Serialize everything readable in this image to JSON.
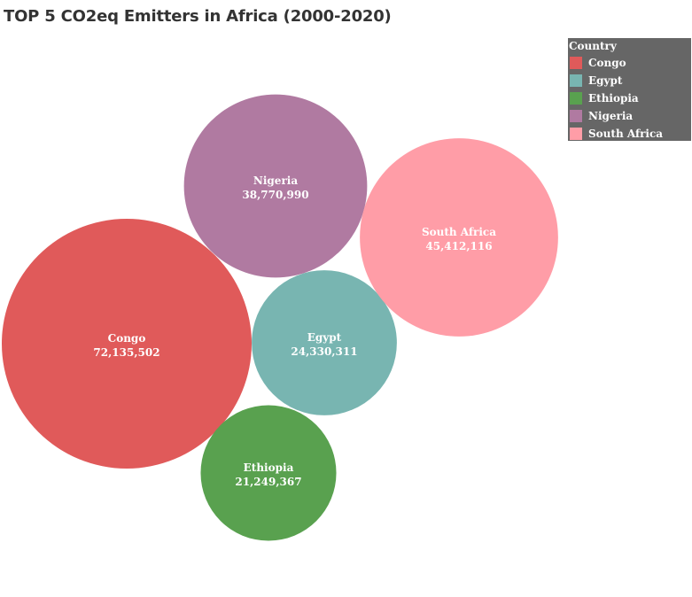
{
  "title": "TOP 5 CO2eq Emitters in Africa (2000-2020)",
  "legend": {
    "title": "Country",
    "items": [
      {
        "label": "Congo",
        "color": "#e05a5a"
      },
      {
        "label": "Egypt",
        "color": "#78b5b1"
      },
      {
        "label": "Ethiopia",
        "color": "#59a14f"
      },
      {
        "label": "Nigeria",
        "color": "#b07aa1"
      },
      {
        "label": "South Africa",
        "color": "#ff9da7"
      }
    ]
  },
  "chart_data": {
    "type": "packed-bubble",
    "title": "TOP 5 CO2eq Emitters in Africa (2000-2020)",
    "legend_title": "Country",
    "legend_position": "top-right",
    "categories": [
      "Congo",
      "Egypt",
      "Ethiopia",
      "Nigeria",
      "South Africa"
    ],
    "values": [
      72135502,
      24330311,
      21249367,
      38770990,
      45412116
    ],
    "value_labels": [
      "72,135,502",
      "24,330,311",
      "21,249,367",
      "38,770,990",
      "45,412,116"
    ],
    "colors": [
      "#e05a5a",
      "#78b5b1",
      "#59a14f",
      "#b07aa1",
      "#ff9da7"
    ]
  }
}
